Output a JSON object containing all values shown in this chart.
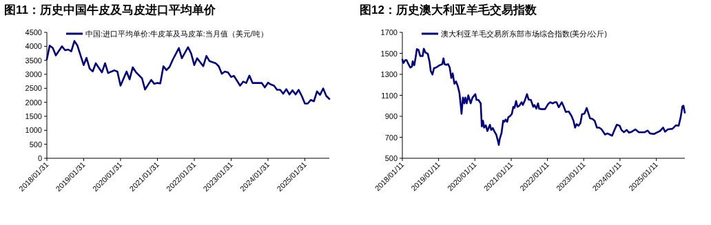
{
  "chart_data": [
    {
      "type": "line",
      "title": "图11：历史中国牛皮及马皮进口平均单价",
      "legend": "top",
      "grid": false,
      "marker": "none",
      "line_style": "solid",
      "xlim": [
        "2018-01-31",
        "2025-09-30"
      ],
      "ylim": [
        0,
        4500
      ],
      "xticks": [
        {
          "value": "2018-01-31",
          "label": "2018/01/31"
        },
        {
          "value": "2019-01-31",
          "label": "2019/01/31"
        },
        {
          "value": "2020-01-31",
          "label": "2020/01/31"
        },
        {
          "value": "2021-01-31",
          "label": "2021/01/31"
        },
        {
          "value": "2022-01-31",
          "label": "2022/01/31"
        },
        {
          "value": "2023-01-31",
          "label": "2023/01/31"
        },
        {
          "value": "2024-01-31",
          "label": "2024/01/31"
        },
        {
          "value": "2025-01-31",
          "label": "2025/01/31"
        }
      ],
      "yticks": [
        0,
        500,
        1000,
        1500,
        2000,
        2500,
        3000,
        3500,
        4000,
        4500
      ],
      "series": [
        {
          "name": "中国:进口平均单价:牛皮革及马皮革:当月值（美元/吨）",
          "color": "#000080",
          "x": [
            "2018-01-31",
            "2018-02-28",
            "2018-03-31",
            "2018-04-30",
            "2018-06-30",
            "2018-07-31",
            "2018-08-31",
            "2018-09-30",
            "2018-10-31",
            "2018-11-30",
            "2019-01-31",
            "2019-02-28",
            "2019-03-31",
            "2019-04-30",
            "2019-05-31",
            "2019-07-31",
            "2019-08-31",
            "2019-09-30",
            "2019-11-30",
            "2019-12-31",
            "2020-01-31",
            "2020-03-31",
            "2020-04-30",
            "2020-05-31",
            "2020-06-30",
            "2020-08-31",
            "2020-09-30",
            "2020-11-30",
            "2020-12-31",
            "2021-01-31",
            "2021-02-28",
            "2021-03-31",
            "2021-04-30",
            "2021-05-31",
            "2021-06-30",
            "2021-08-31",
            "2021-09-30",
            "2021-11-30",
            "2021-12-31",
            "2022-01-31",
            "2022-02-28",
            "2022-04-30",
            "2022-05-31",
            "2022-06-30",
            "2022-08-31",
            "2022-09-30",
            "2022-10-31",
            "2022-11-30",
            "2022-12-31",
            "2023-01-31",
            "2023-02-28",
            "2023-04-30",
            "2023-05-31",
            "2023-06-30",
            "2023-07-31",
            "2023-08-31",
            "2023-10-31",
            "2023-11-30",
            "2023-12-31",
            "2024-01-31",
            "2024-02-29",
            "2024-03-31",
            "2024-04-30",
            "2024-05-31",
            "2024-06-30",
            "2024-07-31",
            "2024-08-31",
            "2024-09-30",
            "2024-10-31",
            "2024-11-30",
            "2024-12-31",
            "2025-01-31",
            "2025-02-28",
            "2025-03-31",
            "2025-04-30",
            "2025-05-31",
            "2025-06-30",
            "2025-07-31",
            "2025-08-31",
            "2025-09-30"
          ],
          "values": [
            3535,
            4025,
            3940,
            3675,
            4000,
            3860,
            3885,
            3820,
            4190,
            4025,
            3330,
            3590,
            3205,
            3100,
            3395,
            3070,
            3395,
            3045,
            3140,
            3100,
            2595,
            3100,
            2820,
            3250,
            3085,
            2855,
            2455,
            2800,
            2660,
            2690,
            2675,
            3290,
            3150,
            3265,
            3510,
            3940,
            3575,
            3970,
            3740,
            3330,
            3575,
            3290,
            3655,
            3475,
            3395,
            3290,
            3020,
            3100,
            3070,
            2905,
            2945,
            2595,
            2740,
            2690,
            2955,
            2690,
            2690,
            2690,
            2530,
            2700,
            2635,
            2595,
            2445,
            2445,
            2305,
            2470,
            2280,
            2430,
            2280,
            2445,
            2225,
            1955,
            1955,
            2085,
            2035,
            2390,
            2265,
            2495,
            2225,
            2120
          ]
        }
      ]
    },
    {
      "type": "line",
      "title": "图12：历史澳大利亚羊毛交易指数",
      "legend": "top",
      "grid": false,
      "marker": "none",
      "line_style": "solid",
      "xlim": [
        "2018-01-11",
        "2025-10-25"
      ],
      "ylim": [
        500,
        1700
      ],
      "xticks": [
        {
          "value": "2018-01-11",
          "label": "2018/01/11"
        },
        {
          "value": "2019-01-11",
          "label": "2019/01/11"
        },
        {
          "value": "2020-01-11",
          "label": "2020/01/11"
        },
        {
          "value": "2021-01-11",
          "label": "2021/01/11"
        },
        {
          "value": "2022-01-11",
          "label": "2022/01/11"
        },
        {
          "value": "2023-01-11",
          "label": "2023/01/11"
        },
        {
          "value": "2024-01-11",
          "label": "2024/01/11"
        },
        {
          "value": "2025-01-11",
          "label": "2025/01/11"
        }
      ],
      "yticks": [
        500,
        700,
        900,
        1100,
        1300,
        1500,
        1700
      ],
      "series": [
        {
          "name": "澳大利亚羊毛交易所东部市场综合指数(美分/公斤)",
          "color": "#000080",
          "x": [
            "2018-01-11",
            "2018-01-22",
            "2018-02-08",
            "2018-02-22",
            "2018-03-08",
            "2018-04-01",
            "2018-04-18",
            "2018-04-25",
            "2018-05-11",
            "2018-05-25",
            "2018-06-06",
            "2018-06-22",
            "2018-07-10",
            "2018-08-03",
            "2018-08-15",
            "2018-09-01",
            "2018-09-24",
            "2018-10-12",
            "2018-10-24",
            "2018-11-10",
            "2018-11-26",
            "2018-12-15",
            "2019-01-20",
            "2019-02-17",
            "2019-03-01",
            "2019-03-12",
            "2019-03-29",
            "2019-04-17",
            "2019-05-03",
            "2019-05-19",
            "2019-06-02",
            "2019-06-19",
            "2019-07-05",
            "2019-07-23",
            "2019-08-09",
            "2019-08-21",
            "2019-08-30",
            "2019-09-13",
            "2019-09-27",
            "2019-10-07",
            "2019-10-21",
            "2019-11-06",
            "2019-11-30",
            "2019-12-18",
            "2020-01-16",
            "2020-01-28",
            "2020-02-16",
            "2020-03-10",
            "2020-03-21",
            "2020-04-02",
            "2020-04-13",
            "2020-04-30",
            "2020-05-16",
            "2020-05-30",
            "2020-06-11",
            "2020-06-23",
            "2020-07-09",
            "2020-07-27",
            "2020-08-13",
            "2020-09-01",
            "2020-09-08",
            "2020-09-17",
            "2020-10-06",
            "2020-10-22",
            "2020-11-03",
            "2020-11-15",
            "2020-12-01",
            "2020-12-13",
            "2020-12-31",
            "2021-01-18",
            "2021-02-01",
            "2021-02-13",
            "2021-03-01",
            "2021-03-15",
            "2021-04-03",
            "2021-04-26",
            "2021-05-08",
            "2021-05-26",
            "2021-06-19",
            "2021-07-05",
            "2021-07-28",
            "2021-08-21",
            "2021-09-02",
            "2021-09-21",
            "2021-10-08",
            "2021-10-19",
            "2021-11-12",
            "2021-12-17",
            "2022-01-17",
            "2022-02-09",
            "2022-03-04",
            "2022-03-26",
            "2022-04-12",
            "2022-05-05",
            "2022-06-04",
            "2022-06-25",
            "2022-07-14",
            "2022-08-13",
            "2022-09-11",
            "2022-09-30",
            "2022-10-16",
            "2022-11-01",
            "2022-11-20",
            "2022-12-09",
            "2022-12-25",
            "2023-01-18",
            "2023-02-10",
            "2023-03-01",
            "2023-03-16",
            "2023-04-08",
            "2023-05-01",
            "2023-05-24",
            "2023-06-17",
            "2023-07-10",
            "2023-08-14",
            "2023-09-07",
            "2023-09-30",
            "2023-10-24",
            "2023-11-17",
            "2023-12-10",
            "2024-01-08",
            "2024-01-26",
            "2024-02-19",
            "2024-03-19",
            "2024-04-12",
            "2024-05-09",
            "2024-06-14",
            "2024-07-19",
            "2024-09-16",
            "2024-10-16",
            "2024-11-08",
            "2024-12-18",
            "2025-01-23",
            "2025-02-16",
            "2025-03-21",
            "2025-04-09",
            "2025-05-07",
            "2025-06-23",
            "2025-07-27",
            "2025-08-24",
            "2025-09-13",
            "2025-10-01",
            "2025-10-11",
            "2025-10-25"
          ],
          "values": [
            1441,
            1408,
            1434,
            1436,
            1408,
            1364,
            1375,
            1425,
            1386,
            1463,
            1540,
            1533,
            1474,
            1474,
            1544,
            1507,
            1496,
            1419,
            1331,
            1298,
            1359,
            1364,
            1386,
            1397,
            1452,
            1397,
            1390,
            1397,
            1364,
            1265,
            1309,
            1210,
            1232,
            1188,
            1122,
            1012,
            924,
            1078,
            1023,
            1078,
            1023,
            1100,
            1023,
            1078,
            1111,
            1056,
            1056,
            1023,
            803,
            858,
            792,
            814,
            759,
            792,
            819,
            770,
            788,
            753,
            726,
            660,
            627,
            682,
            744,
            858,
            847,
            869,
            847,
            891,
            902,
            924,
            990,
            979,
            1045,
            990,
            1001,
            1034,
            1008,
            1045,
            1111,
            1060,
            1056,
            990,
            1008,
            973,
            1023,
            973,
            968,
            968,
            1016,
            1034,
            1023,
            1034,
            1034,
            986,
            1034,
            990,
            942,
            946,
            902,
            858,
            792,
            825,
            810,
            836,
            920,
            924,
            979,
            924,
            880,
            876,
            858,
            792,
            792,
            775,
            726,
            737,
            726,
            715,
            770,
            819,
            810,
            770,
            748,
            770,
            744,
            753,
            775,
            748,
            748,
            764,
            737,
            731,
            748,
            759,
            792,
            753,
            775,
            781,
            814,
            810,
            891,
            995,
            1001,
            935
          ]
        }
      ]
    }
  ]
}
